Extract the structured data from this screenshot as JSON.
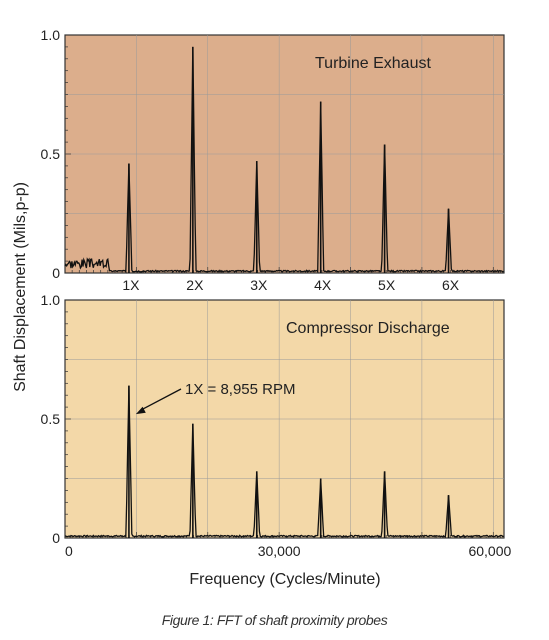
{
  "caption": "Figure 1: FFT of shaft proximity probes",
  "colors": {
    "top_panel_bg": "#dcae8c",
    "bottom_panel_bg": "#f3d8a8",
    "trace": "#111111"
  },
  "chart_data": [
    {
      "type": "line",
      "title": "Turbine Exhaust",
      "ylabel": "Shaft Displacement (Mils,p-p)",
      "xlabel": "",
      "x_unit": "Cycles/Minute",
      "xlim": [
        0,
        61500
      ],
      "ylim": [
        0,
        1.0
      ],
      "y_ticks": [
        "0",
        "0.5",
        "1.0"
      ],
      "x_tick_labels": [
        "1X",
        "2X",
        "3X",
        "4X",
        "5X",
        "6X"
      ],
      "x_tick_positions": [
        8955,
        17910,
        26865,
        35820,
        44775,
        53730
      ],
      "grid": true,
      "peaks": [
        {
          "order": "1X",
          "x": 8955,
          "y": 0.46
        },
        {
          "order": "2X",
          "x": 17910,
          "y": 0.95
        },
        {
          "order": "3X",
          "x": 26865,
          "y": 0.47
        },
        {
          "order": "4X",
          "x": 35820,
          "y": 0.72
        },
        {
          "order": "5X",
          "x": 44775,
          "y": 0.54
        },
        {
          "order": "6X",
          "x": 53730,
          "y": 0.27
        }
      ]
    },
    {
      "type": "line",
      "title": "Compressor Discharge",
      "ylabel": "Shaft Displacement (Mils,p-p)",
      "xlabel": "Frequency (Cycles/Minute)",
      "xlim": [
        0,
        61500
      ],
      "ylim": [
        0,
        1.0
      ],
      "y_ticks": [
        "0",
        "0.5",
        "1.0"
      ],
      "x_ticks": [
        0,
        30000,
        60000
      ],
      "x_tick_labels": [
        "0",
        "30,000",
        "60,000"
      ],
      "grid": true,
      "annotation": {
        "text": "1X = 8,955 RPM",
        "x": 8955,
        "y": 0.63
      },
      "peaks": [
        {
          "x": 8955,
          "y": 0.64
        },
        {
          "x": 17910,
          "y": 0.48
        },
        {
          "x": 26865,
          "y": 0.28
        },
        {
          "x": 35820,
          "y": 0.25
        },
        {
          "x": 44775,
          "y": 0.28
        },
        {
          "x": 53730,
          "y": 0.18
        }
      ]
    }
  ]
}
